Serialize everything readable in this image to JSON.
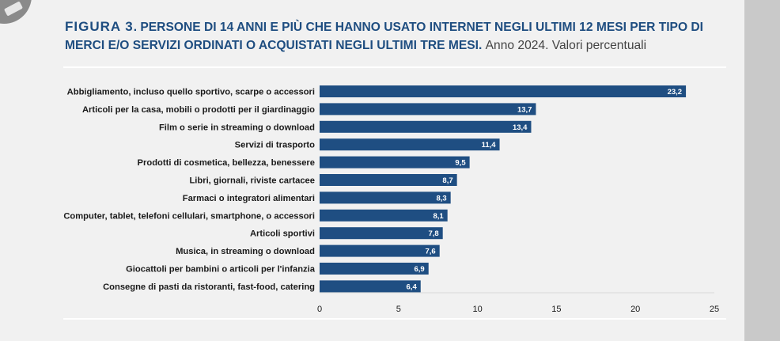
{
  "header": {
    "figure_label": "FIGURA 3",
    "title": ". PERSONE DI 14 ANNI E PIÙ CHE HANNO USATO INTERNET NEGLI ULTIMI 12 MESI PER TIPO DI MERCI E/O SERVIZI ORDINATI O ACQUISTATI NEGLI ULTIMI TRE MESI.",
    "subtitle": "Anno 2024. Valori percentuali"
  },
  "colors": {
    "bar": "#1f4e82",
    "title": "#1e4d80",
    "background": "#f1f1f1"
  },
  "chart_data": {
    "type": "bar",
    "orientation": "horizontal",
    "categories": [
      "Abbigliamento, incluso quello sportivo, scarpe o accessori",
      "Articoli per la casa, mobili o prodotti per il giardinaggio",
      "Film o serie in streaming o download",
      "Servizi di trasporto",
      "Prodotti di cosmetica, bellezza, benessere",
      "Libri, giornali, riviste cartacee",
      "Farmaci o integratori alimentari",
      "Computer, tablet, telefoni cellulari, smartphone, o accessori",
      "Articoli sportivi",
      "Musica, in streaming o download",
      "Giocattoli per bambini o articoli per l'infanzia",
      "Consegne di pasti da ristoranti, fast-food, catering"
    ],
    "values": [
      23.2,
      13.7,
      13.4,
      11.4,
      9.5,
      8.7,
      8.3,
      8.1,
      7.8,
      7.6,
      6.9,
      6.4
    ],
    "value_labels": [
      "23,2",
      "13,7",
      "13,4",
      "11,4",
      "9,5",
      "8,7",
      "8,3",
      "8,1",
      "7,8",
      "7,6",
      "6,9",
      "6,4"
    ],
    "xlim": [
      0,
      25
    ],
    "xticks": [
      0,
      5,
      10,
      15,
      20,
      25
    ],
    "xtick_labels": [
      "0",
      "5",
      "10",
      "15",
      "20",
      "25"
    ],
    "grid": false,
    "legend": "none"
  }
}
